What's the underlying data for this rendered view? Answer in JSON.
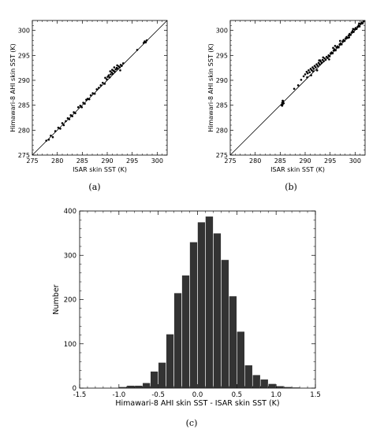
{
  "panels": [
    "(a)",
    "(b)",
    "(c)"
  ],
  "chart_data": [
    {
      "type": "scatter",
      "panel": "(a)",
      "xlabel": "ISAR skin SST (K)",
      "ylabel": "Himawari-8 AHI skin SST (K)",
      "xlim": [
        275,
        302
      ],
      "ylim": [
        275,
        302
      ],
      "xticks": [
        275,
        280,
        285,
        290,
        295,
        300
      ],
      "yticks": [
        275,
        280,
        285,
        290,
        295,
        300
      ],
      "reference_line": "1:1",
      "marker_color": "#000000",
      "points": [
        [
          277.8,
          277.9
        ],
        [
          278.3,
          278.1
        ],
        [
          278.7,
          278.9
        ],
        [
          279.1,
          278.6
        ],
        [
          279.6,
          279.8
        ],
        [
          280.2,
          280.5
        ],
        [
          280.6,
          280.3
        ],
        [
          281.0,
          281.4
        ],
        [
          281.3,
          281.0
        ],
        [
          281.7,
          281.8
        ],
        [
          282.1,
          282.4
        ],
        [
          282.4,
          282.2
        ],
        [
          282.7,
          283.0
        ],
        [
          283.0,
          282.8
        ],
        [
          283.3,
          283.6
        ],
        [
          283.6,
          283.4
        ],
        [
          284.2,
          284.6
        ],
        [
          284.6,
          284.9
        ],
        [
          284.9,
          284.6
        ],
        [
          285.2,
          285.5
        ],
        [
          285.5,
          285.3
        ],
        [
          285.8,
          286.1
        ],
        [
          286.1,
          286.3
        ],
        [
          286.4,
          286.2
        ],
        [
          286.7,
          287.0
        ],
        [
          287.1,
          287.4
        ],
        [
          287.5,
          287.3
        ],
        [
          287.9,
          288.2
        ],
        [
          288.3,
          288.5
        ],
        [
          288.7,
          289.0
        ],
        [
          289.1,
          289.5
        ],
        [
          289.5,
          289.3
        ],
        [
          289.9,
          290.2
        ],
        [
          290.1,
          290.7
        ],
        [
          290.3,
          291.0
        ],
        [
          290.5,
          290.6
        ],
        [
          290.7,
          291.2
        ],
        [
          290.9,
          291.6
        ],
        [
          291.1,
          291.3
        ],
        [
          291.3,
          291.9
        ],
        [
          291.5,
          291.7
        ],
        [
          291.7,
          292.2
        ],
        [
          291.9,
          292.5
        ],
        [
          292.1,
          292.3
        ],
        [
          292.3,
          292.8
        ],
        [
          292.5,
          292.6
        ],
        [
          292.7,
          293.1
        ],
        [
          292.9,
          292.9
        ],
        [
          293.2,
          293.4
        ],
        [
          291.0,
          292.1
        ],
        [
          291.4,
          292.6
        ],
        [
          292.0,
          293.0
        ],
        [
          290.6,
          291.8
        ],
        [
          292.6,
          292.0
        ],
        [
          289.6,
          290.5
        ],
        [
          297.3,
          297.5
        ],
        [
          297.5,
          297.8
        ],
        [
          297.7,
          297.6
        ],
        [
          297.9,
          298.0
        ],
        [
          296.0,
          296.1
        ]
      ]
    },
    {
      "type": "scatter",
      "panel": "(b)",
      "xlabel": "ISAR skin SST (K)",
      "ylabel": "Himawari-8 AHI skin SST (K)",
      "xlim": [
        275,
        302
      ],
      "ylim": [
        275,
        302
      ],
      "xticks": [
        275,
        280,
        285,
        290,
        295,
        300
      ],
      "yticks": [
        275,
        280,
        285,
        290,
        295,
        300
      ],
      "reference_line": "1:1",
      "marker_color": "#000000",
      "points": [
        [
          285.3,
          285.0
        ],
        [
          285.4,
          285.5
        ],
        [
          285.5,
          285.2
        ],
        [
          285.6,
          285.8
        ],
        [
          285.7,
          285.4
        ],
        [
          285.5,
          285.9
        ],
        [
          285.4,
          284.9
        ],
        [
          287.8,
          288.3
        ],
        [
          288.6,
          289.0
        ],
        [
          289.7,
          290.8
        ],
        [
          290.0,
          291.2
        ],
        [
          290.3,
          291.7
        ],
        [
          290.5,
          291.4
        ],
        [
          290.7,
          292.0
        ],
        [
          290.9,
          291.6
        ],
        [
          291.1,
          292.3
        ],
        [
          291.3,
          292.0
        ],
        [
          291.5,
          292.6
        ],
        [
          291.7,
          292.3
        ],
        [
          291.9,
          292.9
        ],
        [
          292.1,
          292.6
        ],
        [
          292.3,
          293.2
        ],
        [
          292.5,
          292.9
        ],
        [
          292.7,
          293.5
        ],
        [
          292.9,
          293.2
        ],
        [
          293.1,
          293.8
        ],
        [
          293.3,
          293.5
        ],
        [
          293.5,
          294.1
        ],
        [
          293.7,
          293.8
        ],
        [
          293.9,
          294.4
        ],
        [
          294.1,
          294.1
        ],
        [
          294.3,
          294.7
        ],
        [
          294.5,
          294.5
        ],
        [
          294.7,
          295.0
        ],
        [
          294.9,
          294.8
        ],
        [
          295.1,
          295.4
        ],
        [
          295.3,
          295.6
        ],
        [
          295.5,
          295.4
        ],
        [
          295.7,
          296.0
        ],
        [
          295.9,
          296.2
        ],
        [
          296.1,
          296.0
        ],
        [
          296.3,
          296.6
        ],
        [
          296.5,
          296.8
        ],
        [
          296.7,
          296.6
        ],
        [
          296.9,
          297.2
        ],
        [
          297.1,
          297.4
        ],
        [
          297.3,
          297.2
        ],
        [
          297.5,
          297.8
        ],
        [
          297.7,
          298.1
        ],
        [
          297.9,
          297.9
        ],
        [
          298.1,
          298.4
        ],
        [
          298.3,
          298.7
        ],
        [
          298.5,
          298.5
        ],
        [
          298.7,
          299.0
        ],
        [
          298.9,
          299.3
        ],
        [
          299.1,
          299.1
        ],
        [
          299.3,
          299.6
        ],
        [
          299.5,
          299.9
        ],
        [
          299.7,
          299.7
        ],
        [
          299.9,
          300.2
        ],
        [
          300.1,
          300.5
        ],
        [
          300.3,
          300.3
        ],
        [
          300.5,
          300.7
        ],
        [
          300.7,
          301.0
        ],
        [
          300.9,
          300.8
        ],
        [
          301.1,
          301.3
        ],
        [
          301.3,
          301.6
        ],
        [
          301.5,
          301.4
        ],
        [
          301.7,
          301.8
        ],
        [
          291.2,
          291.0
        ],
        [
          292.4,
          292.0
        ],
        [
          293.0,
          294.0
        ],
        [
          294.8,
          294.2
        ],
        [
          296.0,
          296.9
        ],
        [
          289.2,
          290.1
        ],
        [
          290.4,
          290.6
        ],
        [
          292.8,
          294.0
        ],
        [
          295.6,
          296.5
        ],
        [
          298.8,
          298.6
        ],
        [
          297.0,
          297.9
        ],
        [
          293.6,
          294.6
        ],
        [
          291.6,
          291.8
        ],
        [
          299.6,
          300.3
        ],
        [
          300.8,
          301.4
        ]
      ]
    },
    {
      "type": "bar",
      "panel": "(c)",
      "xlabel": "Himawari-8 AHI skin SST - ISAR skin SST (K)",
      "ylabel": "Number",
      "xlim": [
        -1.5,
        1.5
      ],
      "ylim": [
        0,
        400
      ],
      "xticks": [
        -1.5,
        -1.0,
        -0.5,
        0.0,
        0.5,
        1.0,
        1.5
      ],
      "xtick_labels": [
        "-1.5",
        "-1.0",
        "-0.5",
        "0.0",
        "0.5",
        "1.0",
        "1.5"
      ],
      "yticks": [
        0,
        100,
        200,
        300,
        400
      ],
      "bar_color": "#333333",
      "bin_width": 0.1,
      "bin_starts": [
        -1.5,
        -1.4,
        -1.3,
        -1.2,
        -1.1,
        -1.0,
        -0.9,
        -0.8,
        -0.7,
        -0.6,
        -0.5,
        -0.4,
        -0.3,
        -0.2,
        -0.1,
        0.0,
        0.1,
        0.2,
        0.3,
        0.4,
        0.5,
        0.6,
        0.7,
        0.8,
        0.9,
        1.0,
        1.1,
        1.2,
        1.3,
        1.4
      ],
      "values": [
        0,
        0,
        0,
        0,
        1,
        3,
        6,
        6,
        12,
        38,
        58,
        122,
        215,
        255,
        330,
        375,
        388,
        350,
        290,
        208,
        128,
        52,
        30,
        20,
        10,
        5,
        3,
        2,
        1,
        1
      ]
    }
  ]
}
